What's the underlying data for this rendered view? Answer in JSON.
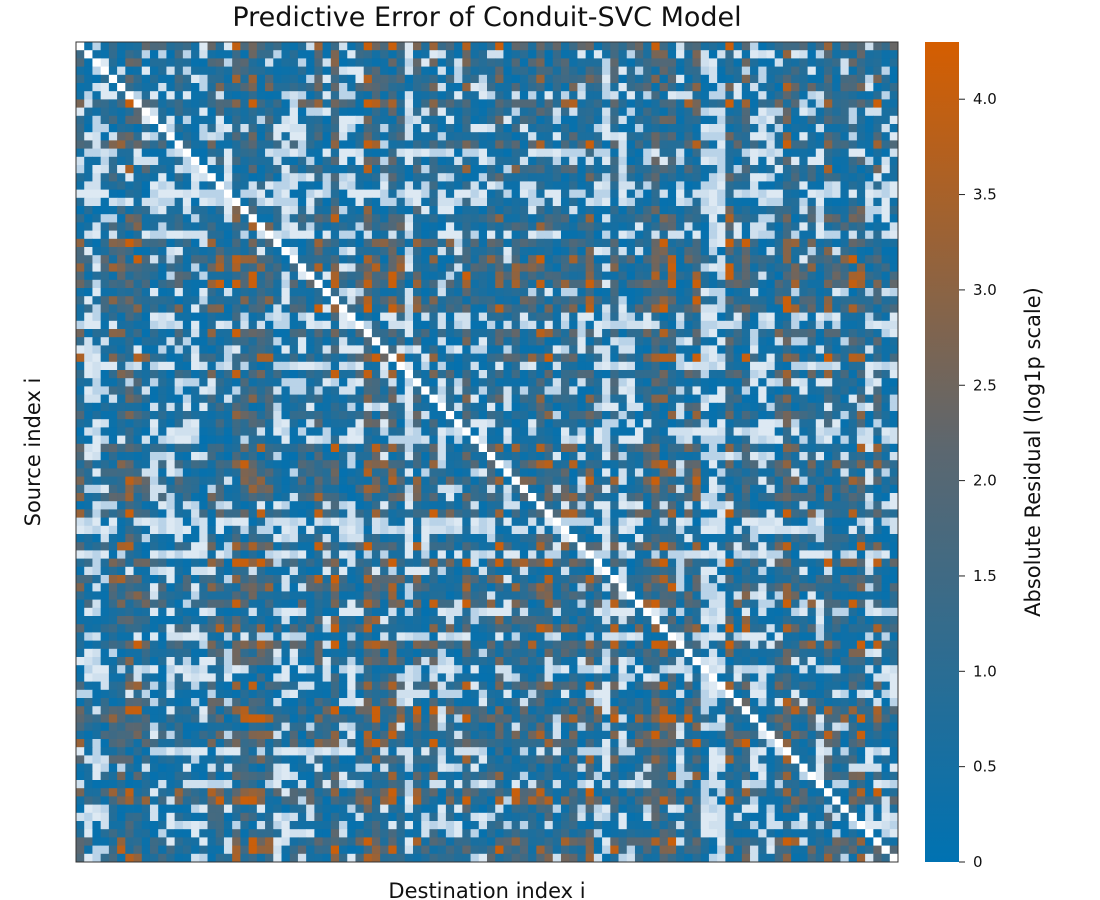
{
  "chart_data": {
    "type": "heatmap",
    "title": "Predictive Error of Conduit-SVC Model",
    "xlabel": "Destination index i",
    "ylabel": "Source index i",
    "colorbar_label": "Absolute Residual (log1p scale)",
    "n_rows": 100,
    "n_cols": 100,
    "diagonal_value": 0,
    "value_range": [
      0,
      4.3
    ],
    "colorbar_ticks": [
      "0",
      "0.5",
      "1.0",
      "1.5",
      "2.0",
      "2.5",
      "3.0",
      "3.5",
      "4.0"
    ],
    "colormap": [
      "#0072b2",
      "#5b6770",
      "#d55e00"
    ],
    "light_cell_colors": [
      "#dde9f3",
      "#cfe0ee",
      "#b9d3e8"
    ],
    "cell_values_note": ""
  }
}
